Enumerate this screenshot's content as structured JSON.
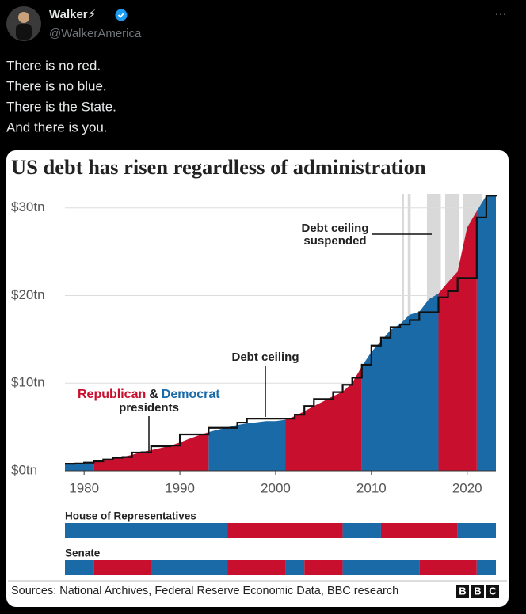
{
  "tweet": {
    "name": "Walker⚡",
    "handle": "@WalkerAmerica",
    "more": "···",
    "text": [
      "There is no red.",
      "There is no blue.",
      "There is the State.",
      "And there is you."
    ]
  },
  "chart_data": {
    "type": "area",
    "title": "US debt has risen regardless of administration",
    "x": [
      1978,
      1979,
      1980,
      1981,
      1982,
      1983,
      1984,
      1985,
      1986,
      1987,
      1988,
      1989,
      1990,
      1991,
      1992,
      1993,
      1994,
      1995,
      1996,
      1997,
      1998,
      1999,
      2000,
      2001,
      2002,
      2003,
      2004,
      2005,
      2006,
      2007,
      2008,
      2009,
      2010,
      2011,
      2012,
      2013,
      2014,
      2015,
      2016,
      2017,
      2018,
      2019,
      2020,
      2021,
      2022,
      2023
    ],
    "series": [
      {
        "name": "Democrat",
        "color": "#1a6aa8",
        "values": [
          0.77,
          0.83,
          0.91,
          1.0,
          null,
          null,
          null,
          null,
          null,
          null,
          null,
          null,
          null,
          null,
          null,
          4.41,
          4.69,
          4.97,
          5.22,
          5.41,
          5.53,
          5.66,
          5.67,
          5.81,
          null,
          null,
          null,
          null,
          null,
          null,
          null,
          11.91,
          13.56,
          14.79,
          16.07,
          16.74,
          17.82,
          18.15,
          19.57,
          20.24,
          null,
          null,
          null,
          29.62,
          31.42,
          31.5
        ]
      },
      {
        "name": "Republican",
        "color": "#c8102e",
        "values": [
          null,
          null,
          null,
          1.0,
          1.14,
          1.38,
          1.57,
          1.82,
          2.13,
          2.35,
          2.6,
          2.86,
          3.23,
          3.67,
          4.06,
          4.41,
          null,
          null,
          null,
          null,
          null,
          null,
          null,
          5.81,
          6.23,
          6.78,
          7.38,
          7.93,
          8.51,
          9.01,
          10.02,
          11.91,
          null,
          null,
          null,
          null,
          null,
          null,
          null,
          20.24,
          21.52,
          22.72,
          27.75,
          29.62,
          null,
          null
        ]
      }
    ],
    "debt_ceiling": [
      0.8,
      0.83,
      0.93,
      1.08,
      1.29,
      1.49,
      1.57,
      2.08,
      2.11,
      2.8,
      2.8,
      2.87,
      4.15,
      4.15,
      4.15,
      4.9,
      4.9,
      4.9,
      5.5,
      5.95,
      5.95,
      5.95,
      5.95,
      5.95,
      6.4,
      7.38,
      8.18,
      8.18,
      8.97,
      9.82,
      10.62,
      12.1,
      14.29,
      15.19,
      16.39,
      16.7,
      17.2,
      18.1,
      18.1,
      19.8,
      20.5,
      22.0,
      22.0,
      28.9,
      31.4,
      31.4
    ],
    "suspended_periods": [
      [
        2013.2,
        2013.4
      ],
      [
        2013.8,
        2014.1
      ],
      [
        2015.8,
        2017.25
      ],
      [
        2017.7,
        2019.2
      ],
      [
        2019.6,
        2021.6
      ]
    ],
    "xlim": [
      1978,
      2023
    ],
    "xticks": [
      1980,
      1990,
      2000,
      2010,
      2020
    ],
    "ylim": [
      0,
      31.6
    ],
    "yticks": [
      {
        "value": 0,
        "label": "$0tn"
      },
      {
        "value": 10,
        "label": "$10tn"
      },
      {
        "value": 20,
        "label": "$20tn"
      },
      {
        "value": 30,
        "label": "$30tn"
      }
    ],
    "grid": true,
    "annotations": {
      "debt_ceiling": "Debt ceiling",
      "suspended": [
        "Debt ceiling",
        "suspended"
      ],
      "and": "&",
      "presidents": "presidents"
    },
    "chambers": [
      {
        "name": "House of Representatives",
        "segments": [
          {
            "start": 1978,
            "end": 1995,
            "color": "#1a6aa8"
          },
          {
            "start": 1995,
            "end": 2007,
            "color": "#c8102e"
          },
          {
            "start": 2007,
            "end": 2011,
            "color": "#1a6aa8"
          },
          {
            "start": 2011,
            "end": 2019,
            "color": "#c8102e"
          },
          {
            "start": 2019,
            "end": 2023,
            "color": "#1a6aa8"
          }
        ]
      },
      {
        "name": "Senate",
        "segments": [
          {
            "start": 1978,
            "end": 1981,
            "color": "#1a6aa8"
          },
          {
            "start": 1981,
            "end": 1987,
            "color": "#c8102e"
          },
          {
            "start": 1987,
            "end": 1995,
            "color": "#1a6aa8"
          },
          {
            "start": 1995,
            "end": 2001,
            "color": "#c8102e"
          },
          {
            "start": 2001,
            "end": 2003,
            "color": "#1a6aa8"
          },
          {
            "start": 2003,
            "end": 2007,
            "color": "#c8102e"
          },
          {
            "start": 2007,
            "end": 2015,
            "color": "#1a6aa8"
          },
          {
            "start": 2015,
            "end": 2021,
            "color": "#c8102e"
          },
          {
            "start": 2021,
            "end": 2023,
            "color": "#1a6aa8"
          }
        ]
      }
    ],
    "source": "Sources: National Archives, Federal Reserve Economic Data, BBC research",
    "logo": [
      "B",
      "B",
      "C"
    ]
  }
}
